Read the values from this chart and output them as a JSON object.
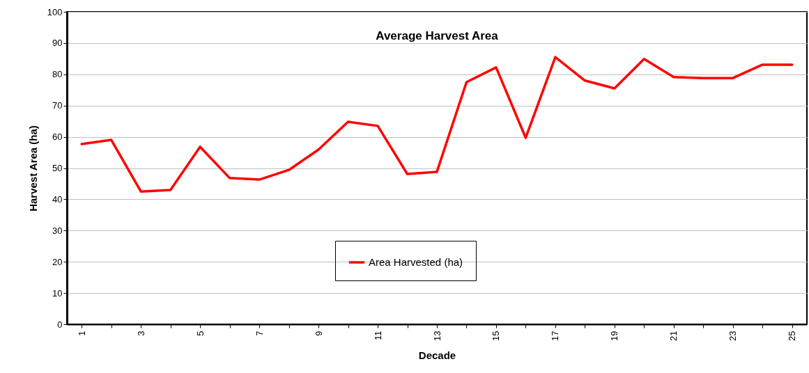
{
  "chart_data": {
    "type": "line",
    "title": "Average Harvest Area",
    "xlabel": "Decade",
    "ylabel": "Harvest Area (ha)",
    "categories": [
      "1",
      null,
      "3",
      null,
      "5",
      null,
      "7",
      null,
      "9",
      null,
      "11",
      null,
      "13",
      null,
      "15",
      null,
      "17",
      null,
      "19",
      null,
      "21",
      null,
      "23",
      null,
      "25"
    ],
    "series": [
      {
        "name": "Area Harvested (ha)",
        "color": "#ff0000",
        "values": [
          57.7,
          59.0,
          42.5,
          43.0,
          56.8,
          46.8,
          46.3,
          49.4,
          55.9,
          64.8,
          63.5,
          48.1,
          48.8,
          77.5,
          82.2,
          59.7,
          85.5,
          78.0,
          75.5,
          84.9,
          79.1,
          78.8,
          78.8,
          83.1,
          83.1
        ]
      }
    ],
    "ylim": [
      0,
      100
    ],
    "yticks": [
      0,
      10,
      20,
      30,
      40,
      50,
      60,
      70,
      80,
      90,
      100
    ],
    "grid": "y",
    "legend": "bottom",
    "marker": "none",
    "line_style": "solid"
  }
}
